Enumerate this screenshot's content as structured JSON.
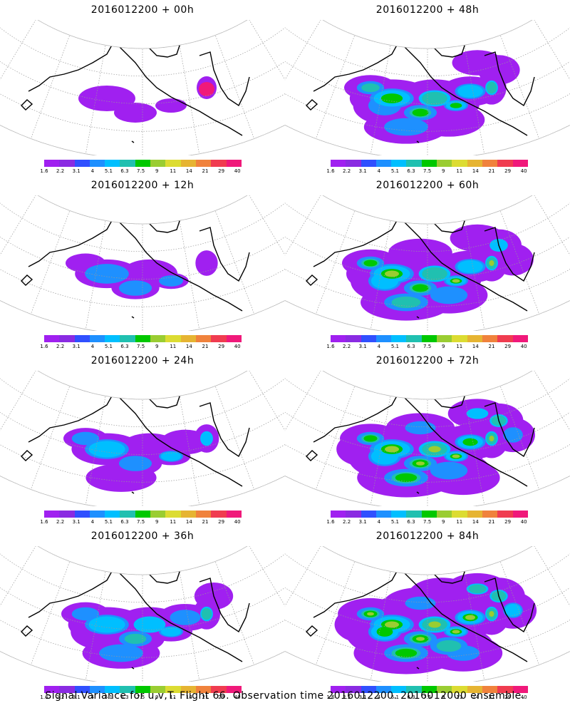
{
  "footer": "Signal Variance for u,v,T. Flight 66. Observation time 2016012200. 2016012000 ensemble.",
  "colorbar": {
    "labels": [
      "1.6",
      "2.2",
      "3.1",
      "4",
      "5.1",
      "6.3",
      "7.5",
      "9",
      "11",
      "14",
      "21",
      "29",
      "40"
    ],
    "colors": [
      "#a020f0",
      "#8a2be2",
      "#3050ff",
      "#1e90ff",
      "#00bfff",
      "#20c0b0",
      "#00c800",
      "#9acd32",
      "#dcdc32",
      "#e6b432",
      "#f0823c",
      "#f03c50",
      "#f0197a"
    ]
  },
  "panels": [
    {
      "title": "2016012200 + 00h",
      "intensity": 0
    },
    {
      "title": "2016012200 + 48h",
      "intensity": 4
    },
    {
      "title": "2016012200 + 12h",
      "intensity": 1
    },
    {
      "title": "2016012200 + 60h",
      "intensity": 5
    },
    {
      "title": "2016012200 + 24h",
      "intensity": 2
    },
    {
      "title": "2016012200 + 72h",
      "intensity": 6
    },
    {
      "title": "2016012200 + 36h",
      "intensity": 3
    },
    {
      "title": "2016012200 + 84h",
      "intensity": 7
    }
  ]
}
